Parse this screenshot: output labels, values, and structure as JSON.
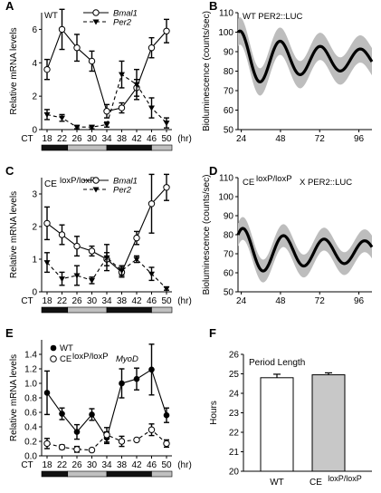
{
  "panels": {
    "A": {
      "letter": "A",
      "label": "WT",
      "ylabel": "Relative mRNA levels",
      "xprefix": "CT",
      "xunit": "(hr)"
    },
    "B": {
      "letter": "B",
      "label": "WT  PER2::LUC",
      "ylabel": "Bioluminescence (counts/sec)"
    },
    "C": {
      "letter": "C",
      "label_main": "CE",
      "label_sup": "loxP/loxP",
      "ylabel": "Relative mRNA levels",
      "xprefix": "CT",
      "xunit": "(hr)"
    },
    "D": {
      "letter": "D",
      "label_main": "CE",
      "label_sup": "loxP/loxP",
      "label_tail": " X PER2::LUC",
      "ylabel": "Bioluminescence (counts/sec)"
    },
    "E": {
      "letter": "E",
      "gene_label": "MyoD",
      "ylabel": "Relative mRNA levels",
      "xprefix": "CT",
      "xunit": "(hr)"
    },
    "F": {
      "letter": "F",
      "title": "Period Length",
      "ylabel": "Hours"
    }
  },
  "colors": {
    "line": "#000000",
    "band": "#bdbdbd",
    "bar_wt": "#ffffff",
    "bar_ce": "#c8c8c8",
    "dark_bar": "#111111",
    "light_bar": "#c0c0c0"
  },
  "chart_data": [
    {
      "panel": "A",
      "type": "line",
      "x": [
        18,
        22,
        26,
        30,
        34,
        38,
        42,
        46,
        50
      ],
      "xticks": [
        18,
        22,
        26,
        30,
        34,
        38,
        42,
        46,
        50
      ],
      "ylim": [
        0,
        7
      ],
      "yticks": [
        0,
        2,
        4,
        6
      ],
      "series": [
        {
          "name": "Bmal1",
          "marker": "open-circle",
          "dash": false,
          "values": [
            3.6,
            6.0,
            4.9,
            4.1,
            1.1,
            1.3,
            2.5,
            4.9,
            5.9
          ],
          "errors": [
            0.6,
            1.2,
            0.8,
            0.6,
            0.4,
            0.3,
            0.5,
            0.6,
            0.7
          ]
        },
        {
          "name": "Per2",
          "marker": "filled-triangle-down",
          "dash": true,
          "values": [
            0.9,
            0.7,
            0.15,
            0.15,
            0.3,
            3.3,
            2.7,
            1.3,
            0.4
          ],
          "errors": [
            0.3,
            0.2,
            0.1,
            0.1,
            0.15,
            0.8,
            0.9,
            0.6,
            0.3
          ]
        }
      ]
    },
    {
      "panel": "B",
      "type": "line",
      "xlim": [
        22,
        104
      ],
      "xticks": [
        24,
        48,
        72,
        96
      ],
      "ylim": [
        50,
        110
      ],
      "yticks": [
        50,
        60,
        70,
        80,
        90,
        100,
        110
      ],
      "start": 22,
      "end": 104,
      "mean": 86,
      "amp_start": 15,
      "amp_end": 4,
      "decay": 36,
      "period": 24.5,
      "peak_at": 48,
      "band_width": 7
    },
    {
      "panel": "C",
      "type": "line",
      "x": [
        18,
        22,
        26,
        30,
        34,
        38,
        42,
        46,
        50
      ],
      "xticks": [
        18,
        22,
        26,
        30,
        34,
        38,
        42,
        46,
        50
      ],
      "ylim": [
        0,
        3.5
      ],
      "yticks": [
        0,
        1,
        2,
        3
      ],
      "series": [
        {
          "name": "Bmal1",
          "marker": "open-circle",
          "dash": false,
          "values": [
            2.1,
            1.75,
            1.4,
            1.25,
            1.0,
            0.6,
            1.65,
            2.7,
            3.2
          ],
          "errors": [
            0.5,
            0.3,
            0.3,
            0.15,
            0.2,
            0.15,
            0.2,
            0.9,
            0.4
          ]
        },
        {
          "name": "Per2",
          "marker": "filled-triangle-down",
          "dash": true,
          "values": [
            0.9,
            0.4,
            0.5,
            0.35,
            1.05,
            0.65,
            1.0,
            0.55,
            0.1
          ],
          "errors": [
            0.3,
            0.2,
            0.3,
            0.1,
            0.4,
            0.15,
            0.1,
            0.2,
            0.05
          ]
        }
      ]
    },
    {
      "panel": "D",
      "type": "line",
      "xlim": [
        22,
        104
      ],
      "xticks": [
        24,
        48,
        72,
        96
      ],
      "ylim": [
        50,
        110
      ],
      "yticks": [
        50,
        60,
        70,
        80,
        90,
        100,
        110
      ],
      "start": 22,
      "end": 104,
      "mean": 71,
      "amp_start": 13,
      "amp_end": 5,
      "decay": 34,
      "period": 24.8,
      "peak_at": 50,
      "band_width": 6
    },
    {
      "panel": "E",
      "type": "line",
      "x": [
        18,
        22,
        26,
        30,
        34,
        38,
        42,
        46,
        50
      ],
      "xticks": [
        18,
        22,
        26,
        30,
        34,
        38,
        42,
        46,
        50
      ],
      "ylim": [
        0,
        1.6
      ],
      "yticks": [
        0,
        0.2,
        0.4,
        0.6,
        0.8,
        1.0,
        1.2,
        1.4
      ],
      "series": [
        {
          "name": "WT",
          "marker": "filled-circle",
          "dash": false,
          "values": [
            0.87,
            0.58,
            0.33,
            0.57,
            0.25,
            1.0,
            1.06,
            1.19,
            0.56
          ],
          "errors": [
            0.3,
            0.08,
            0.1,
            0.08,
            0.08,
            0.2,
            0.15,
            0.35,
            0.1
          ]
        },
        {
          "name": "CE loxP/loxP",
          "marker": "open-circle",
          "dash": true,
          "values": [
            0.17,
            0.12,
            0.09,
            0.08,
            0.29,
            0.2,
            0.22,
            0.36,
            0.17
          ],
          "errors": [
            0.07,
            0.03,
            0.04,
            0.02,
            0.1,
            0.07,
            0.02,
            0.08,
            0.05
          ]
        }
      ]
    },
    {
      "panel": "F",
      "type": "bar",
      "categories": [
        "WT",
        "CE loxP/loxP"
      ],
      "values": [
        24.8,
        24.95
      ],
      "errors": [
        0.18,
        0.1
      ],
      "ylim": [
        20,
        26
      ],
      "yticks": [
        20,
        21,
        22,
        23,
        24,
        25,
        26
      ]
    }
  ]
}
